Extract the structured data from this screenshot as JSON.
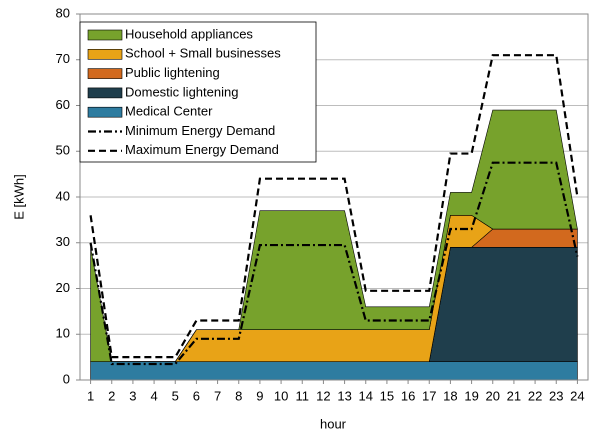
{
  "chart_data": {
    "type": "stacked-area",
    "x_label": "hour",
    "y_label": "E [kWh]",
    "x": [
      1,
      2,
      3,
      4,
      5,
      6,
      7,
      8,
      9,
      10,
      11,
      12,
      13,
      14,
      15,
      16,
      17,
      18,
      19,
      20,
      21,
      22,
      23,
      24
    ],
    "xlim": [
      0.5,
      24.5
    ],
    "xticks": [
      1,
      2,
      3,
      4,
      5,
      6,
      7,
      8,
      9,
      10,
      11,
      12,
      13,
      14,
      15,
      16,
      17,
      18,
      19,
      20,
      21,
      22,
      23,
      24
    ],
    "ylim": [
      0,
      80
    ],
    "yticks": [
      0,
      10,
      20,
      30,
      40,
      50,
      60,
      70,
      80
    ],
    "grid": true,
    "legend": "upper left",
    "series": [
      {
        "name": "Household appliances",
        "color": "#77a22c",
        "kind": "area",
        "values": [
          25,
          0,
          0,
          0,
          0,
          0,
          0,
          0,
          26,
          26,
          26,
          26,
          26,
          5,
          5,
          5,
          5,
          5,
          5,
          26,
          26,
          26,
          26,
          0
        ]
      },
      {
        "name": "School + Small businesses",
        "color": "#e8a317",
        "kind": "area",
        "values": [
          0,
          0,
          0,
          0,
          0,
          7,
          7,
          7,
          7,
          7,
          7,
          7,
          7,
          7,
          7,
          7,
          7,
          7,
          7,
          0,
          0,
          0,
          0,
          0
        ]
      },
      {
        "name": "Public lightening",
        "color": "#d2691e",
        "kind": "area",
        "values": [
          0,
          0,
          0,
          0,
          0,
          0,
          0,
          0,
          0,
          0,
          0,
          0,
          0,
          0,
          0,
          0,
          0,
          0,
          0,
          4,
          4,
          4,
          4,
          4
        ]
      },
      {
        "name": "Domestic lightening",
        "color": "#1f3e4c",
        "kind": "area",
        "values": [
          0,
          0,
          0,
          0,
          0,
          0,
          0,
          0,
          0,
          0,
          0,
          0,
          0,
          0,
          0,
          0,
          0,
          25,
          25,
          25,
          25,
          25,
          25,
          25
        ]
      },
      {
        "name": "Medical Center",
        "color": "#2e7ca0",
        "kind": "area",
        "values": [
          4,
          4,
          4,
          4,
          4,
          4,
          4,
          4,
          4,
          4,
          4,
          4,
          4,
          4,
          4,
          4,
          4,
          4,
          4,
          4,
          4,
          4,
          4,
          4
        ]
      },
      {
        "name": "Minimum Energy Demand",
        "color": "#000000",
        "kind": "line",
        "dash": "8 3 2 3",
        "values": [
          30,
          3.5,
          3.5,
          3.5,
          3.5,
          9,
          9,
          9,
          29.5,
          29.5,
          29.5,
          29.5,
          29.5,
          13,
          13,
          13,
          13,
          33,
          33,
          47.5,
          47.5,
          47.5,
          47.5,
          27
        ]
      },
      {
        "name": "Maximum Energy Demand",
        "color": "#000000",
        "kind": "line",
        "dash": "7 4",
        "values": [
          36,
          5,
          5,
          5,
          5,
          13,
          13,
          13,
          44,
          44,
          44,
          44,
          44,
          19.5,
          19.5,
          19.5,
          19.5,
          49.5,
          49.5,
          71,
          71,
          71,
          71,
          40
        ]
      }
    ]
  }
}
